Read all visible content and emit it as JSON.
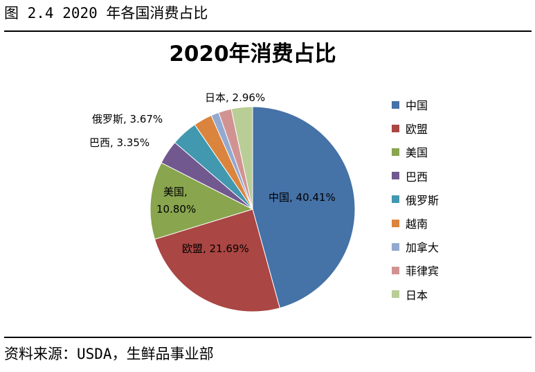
{
  "figure": {
    "caption": "图 2.4 2020 年各国消费占比",
    "source": "资料来源：USDA，生鲜品事业部"
  },
  "chart_data": {
    "type": "pie",
    "title": "2020年消费占比",
    "legend_position": "right",
    "slices": [
      {
        "name": "中国",
        "value": 40.41,
        "color": "#4572A7",
        "label": "中国, 40.41%"
      },
      {
        "name": "欧盟",
        "value": 21.69,
        "color": "#AA4643",
        "label": "欧盟, 21.69%"
      },
      {
        "name": "美国",
        "value": 10.8,
        "color": "#89A54E",
        "label_line1": "美国,",
        "label_line2": "10.80%"
      },
      {
        "name": "巴西",
        "value": 3.35,
        "color": "#71588F",
        "label": "巴西, 3.35%"
      },
      {
        "name": "俄罗斯",
        "value": 3.67,
        "color": "#4198AF",
        "label": "俄罗斯, 3.67%"
      },
      {
        "name": "越南",
        "value": 2.6,
        "color": "#DB843D"
      },
      {
        "name": "加拿大",
        "value": 1.1,
        "color": "#93A9CF"
      },
      {
        "name": "菲律宾",
        "value": 1.8,
        "color": "#D19392"
      },
      {
        "name": "日本",
        "value": 2.96,
        "color": "#B9CD96",
        "label": "日本, 2.96%"
      }
    ]
  }
}
